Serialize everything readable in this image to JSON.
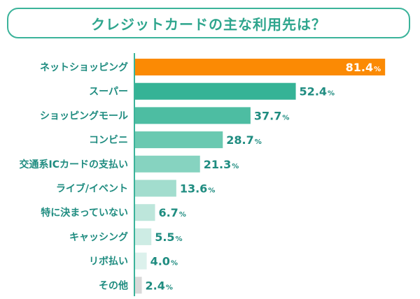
{
  "chart_data": {
    "type": "bar",
    "orientation": "horizontal",
    "title": "クレジットカードの主な利用先は？",
    "categories": [
      "ネットショッピング",
      "スーパー",
      "ショッピングモール",
      "コンビニ",
      "交通系ICカードの支払い",
      "ライブ/イベント",
      "特に決まっていない",
      "キャッシング",
      "リボ払い",
      "その他"
    ],
    "values": [
      81.4,
      52.4,
      37.7,
      28.7,
      21.3,
      13.6,
      6.7,
      5.5,
      4.0,
      2.4
    ],
    "value_labels": [
      "81.4",
      "52.4",
      "37.7",
      "28.7",
      "21.3",
      "13.6",
      "6.7",
      "5.5",
      "4.0",
      "2.4"
    ],
    "unit": "%",
    "xlim": [
      0,
      100
    ],
    "grid": false,
    "legend": "none"
  },
  "colors": {
    "title_border": "#3bb39a",
    "title_text": "#2ea58d",
    "label_text": "#1f8c80",
    "axis": "#3bb39a",
    "highlight_bar": "#fb8a04",
    "highlight_text": "#ffffff",
    "bars": [
      "#fb8a04",
      "#35b396",
      "#4dbda2",
      "#6ac9b1",
      "#86d3c0",
      "#a2ddce",
      "#bde6db",
      "#cdece4",
      "#dcf1ec",
      "#d9d9d9"
    ]
  }
}
